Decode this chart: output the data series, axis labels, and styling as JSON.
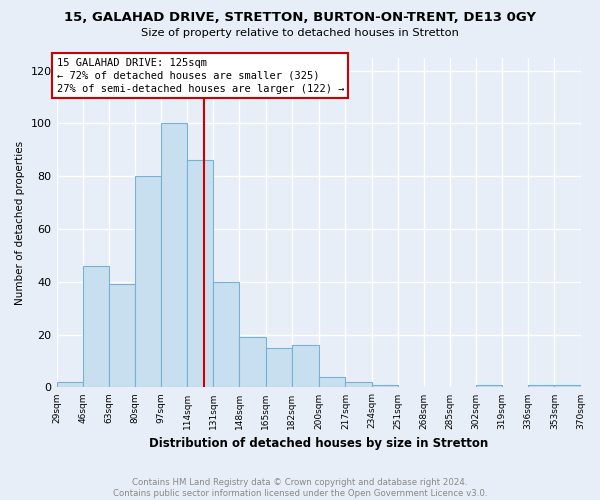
{
  "title": "15, GALAHAD DRIVE, STRETTON, BURTON-ON-TRENT, DE13 0GY",
  "subtitle": "Size of property relative to detached houses in Stretton",
  "xlabel": "Distribution of detached houses by size in Stretton",
  "ylabel": "Number of detached properties",
  "bin_edges": [
    29,
    46,
    63,
    80,
    97,
    114,
    131,
    148,
    165,
    182,
    200,
    217,
    234,
    251,
    268,
    285,
    302,
    319,
    336,
    353,
    370
  ],
  "bar_heights": [
    2,
    46,
    39,
    80,
    100,
    86,
    40,
    19,
    15,
    16,
    4,
    2,
    1,
    0,
    0,
    0,
    1,
    0,
    1,
    1
  ],
  "bar_color": "#c8dff0",
  "bar_edge_color": "#7ab0d4",
  "vline_x": 125,
  "vline_color": "#cc0000",
  "annotation_line1": "15 GALAHAD DRIVE: 125sqm",
  "annotation_line2": "← 72% of detached houses are smaller (325)",
  "annotation_line3": "27% of semi-detached houses are larger (122) →",
  "annotation_box_color": "#ffffff",
  "annotation_box_edge_color": "#cc0000",
  "ylim": [
    0,
    125
  ],
  "yticks": [
    0,
    20,
    40,
    60,
    80,
    100,
    120
  ],
  "tick_labels": [
    "29sqm",
    "46sqm",
    "63sqm",
    "80sqm",
    "97sqm",
    "114sqm",
    "131sqm",
    "148sqm",
    "165sqm",
    "182sqm",
    "200sqm",
    "217sqm",
    "234sqm",
    "251sqm",
    "268sqm",
    "285sqm",
    "302sqm",
    "319sqm",
    "336sqm",
    "353sqm",
    "370sqm"
  ],
  "footer_text": "Contains HM Land Registry data © Crown copyright and database right 2024.\nContains public sector information licensed under the Open Government Licence v3.0.",
  "bg_color": "#e8eef8",
  "grid_color": "#ffffff"
}
